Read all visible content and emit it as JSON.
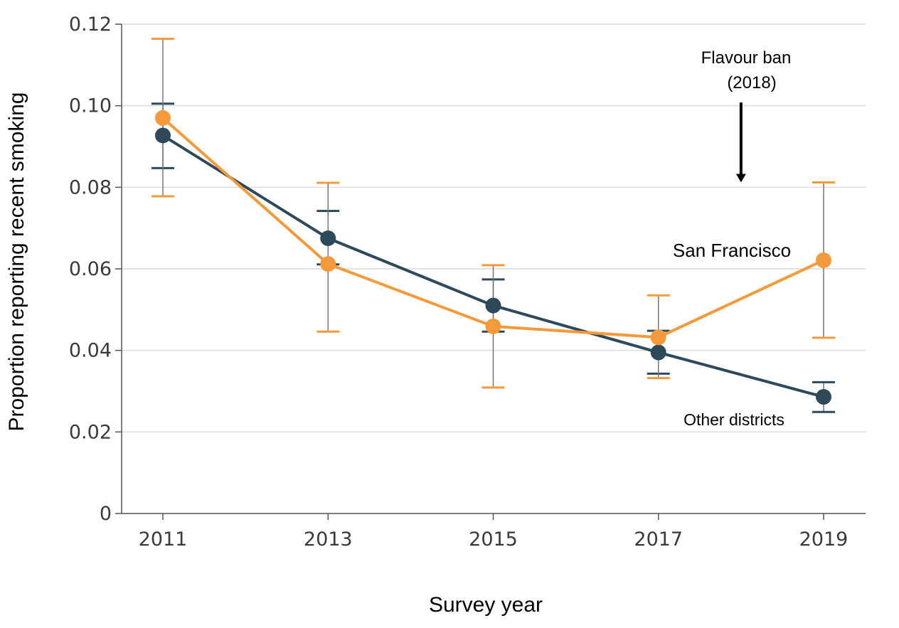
{
  "chart_data": {
    "type": "line",
    "xlabel": "Survey year",
    "ylabel": "Proportion reporting recent smoking",
    "x": [
      2011,
      2013,
      2015,
      2017,
      2019
    ],
    "x_tick_labels": [
      "2011",
      "2013",
      "2015",
      "2017",
      "2019"
    ],
    "ylim": [
      0,
      0.12
    ],
    "y_ticks": [
      0,
      0.02,
      0.04,
      0.06,
      0.08,
      0.1,
      0.12
    ],
    "y_tick_labels": [
      "0",
      "0.02",
      "0.04",
      "0.06",
      "0.08",
      "0.10",
      "0.12"
    ],
    "grid": "horizontal",
    "series": [
      {
        "name": "Other districts",
        "color": "#2e4a5a",
        "values": [
          0.0927,
          0.0675,
          0.051,
          0.0395,
          0.0286
        ],
        "lower": [
          0.0847,
          0.0611,
          0.0446,
          0.0343,
          0.0249
        ],
        "upper": [
          0.1005,
          0.0742,
          0.0574,
          0.0448,
          0.0322
        ]
      },
      {
        "name": "San Francisco",
        "color": "#f59a3a",
        "values": [
          0.097,
          0.0612,
          0.0459,
          0.0432,
          0.0621
        ],
        "lower": [
          0.0778,
          0.0446,
          0.0309,
          0.0332,
          0.0431
        ],
        "upper": [
          0.1164,
          0.0811,
          0.0609,
          0.0535,
          0.0812
        ]
      }
    ],
    "annotations": [
      {
        "line1": "Flavour ban",
        "line2": "(2018)",
        "x": 2018,
        "arrow_from": 0.1008,
        "arrow_to": 0.0812
      }
    ]
  },
  "colors": {
    "axis": "#555555",
    "grid": "#dcdcdc",
    "errorbar": "#777777"
  }
}
